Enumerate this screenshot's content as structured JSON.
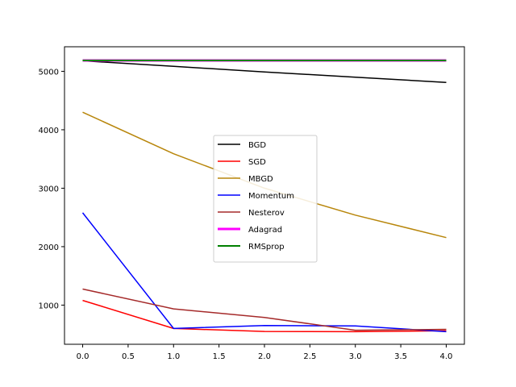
{
  "chart_data": {
    "type": "line",
    "x": [
      0.0,
      1.0,
      2.0,
      3.0,
      4.0
    ],
    "xlim": [
      -0.2,
      4.2
    ],
    "ylim": [
      330,
      5420
    ],
    "xticks": [
      0.0,
      0.5,
      1.0,
      1.5,
      2.0,
      2.5,
      3.0,
      3.5,
      4.0
    ],
    "xtick_labels": [
      "0.0",
      "0.5",
      "1.0",
      "1.5",
      "2.0",
      "2.5",
      "3.0",
      "3.5",
      "4.0"
    ],
    "yticks": [
      1000,
      2000,
      3000,
      4000,
      5000
    ],
    "ytick_labels": [
      "1000",
      "2000",
      "3000",
      "4000",
      "5000"
    ],
    "grid": false,
    "legend_position": "center",
    "series": [
      {
        "name": "BGD",
        "color": "#000000",
        "width": 1.5,
        "values": [
          5180,
          5085,
          4990,
          4900,
          4810
        ]
      },
      {
        "name": "SGD",
        "color": "#ff0000",
        "width": 1.5,
        "values": [
          1080,
          600,
          550,
          545,
          560
        ]
      },
      {
        "name": "MBGD",
        "color": "#b8860b",
        "width": 1.5,
        "values": [
          4300,
          3590,
          3000,
          2540,
          2155
        ]
      },
      {
        "name": "Momentum",
        "color": "#0000ff",
        "width": 1.5,
        "values": [
          2580,
          600,
          650,
          645,
          545
        ]
      },
      {
        "name": "Nesterov",
        "color": "#a52a2a",
        "width": 1.5,
        "values": [
          1275,
          935,
          790,
          570,
          585
        ]
      },
      {
        "name": "Adagrad",
        "color": "#ff00ff",
        "width": 3,
        "values": [
          5185,
          5185,
          5185,
          5185,
          5185
        ]
      },
      {
        "name": "RMSprop",
        "color": "#008000",
        "width": 2,
        "values": [
          5185,
          5185,
          5185,
          5185,
          5185
        ]
      }
    ]
  }
}
